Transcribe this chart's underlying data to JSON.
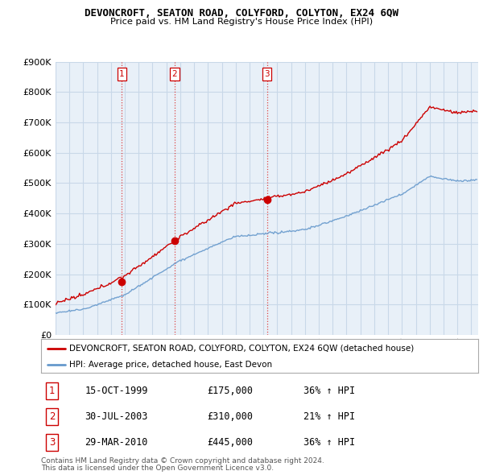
{
  "title": "DEVONCROFT, SEATON ROAD, COLYFORD, COLYTON, EX24 6QW",
  "subtitle": "Price paid vs. HM Land Registry's House Price Index (HPI)",
  "legend_line1": "DEVONCROFT, SEATON ROAD, COLYFORD, COLYTON, EX24 6QW (detached house)",
  "legend_line2": "HPI: Average price, detached house, East Devon",
  "footer1": "Contains HM Land Registry data © Crown copyright and database right 2024.",
  "footer2": "This data is licensed under the Open Government Licence v3.0.",
  "transactions": [
    {
      "num": 1,
      "date": "15-OCT-1999",
      "price": 175000,
      "pct": "36%",
      "dir": "↑",
      "label": "HPI"
    },
    {
      "num": 2,
      "date": "30-JUL-2003",
      "price": 310000,
      "pct": "21%",
      "dir": "↑",
      "label": "HPI"
    },
    {
      "num": 3,
      "date": "29-MAR-2010",
      "price": 445000,
      "pct": "36%",
      "dir": "↑",
      "label": "HPI"
    }
  ],
  "transaction_dates_decimal": [
    1999.79,
    2003.58,
    2010.25
  ],
  "transaction_prices": [
    175000,
    310000,
    445000
  ],
  "ylim": [
    0,
    900000
  ],
  "yticks": [
    0,
    100000,
    200000,
    300000,
    400000,
    500000,
    600000,
    700000,
    800000,
    900000
  ],
  "xstart": 1995.0,
  "xend": 2025.5,
  "red_color": "#cc0000",
  "blue_color": "#6699cc",
  "vline_color": "#dd4444",
  "chart_bg_color": "#e8f0f8",
  "background_color": "#ffffff",
  "grid_color": "#c8d8e8"
}
